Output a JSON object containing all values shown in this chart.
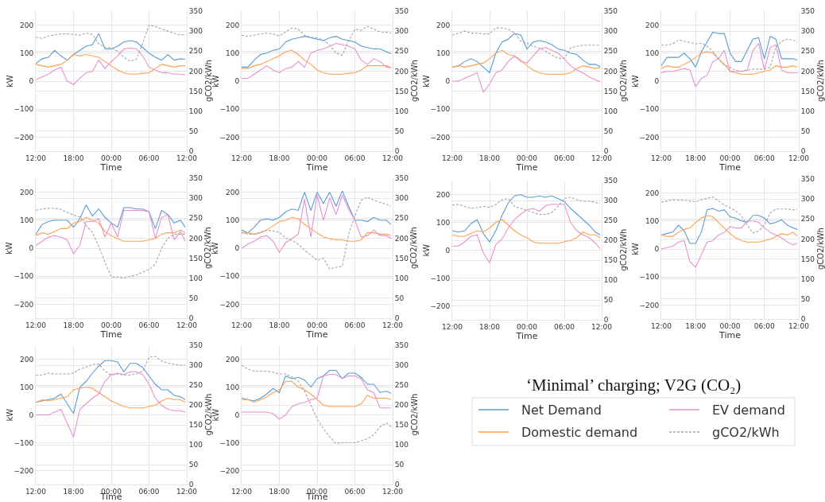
{
  "chart_data": [
    {
      "type": "line",
      "x": [
        "2000-01-01T12:00",
        "2000-01-01T13:00",
        "2000-01-01T14:00",
        "2000-01-01T15:00",
        "2000-01-01T16:00",
        "2000-01-01T17:00",
        "2000-01-01T18:00",
        "2000-01-01T19:00",
        "2000-01-01T20:00",
        "2000-01-01T21:00",
        "2000-01-01T22:00",
        "2000-01-01T23:00",
        "2000-01-02T00:00",
        "2000-01-02T01:00",
        "2000-01-02T02:00",
        "2000-01-02T03:00",
        "2000-01-02T04:00",
        "2000-01-02T05:00",
        "2000-01-02T06:00",
        "2000-01-02T07:00",
        "2000-01-02T08:00",
        "2000-01-02T09:00",
        "2000-01-02T10:00",
        "2000-01-02T11:00",
        "2000-01-02T11:45"
      ],
      "xlim": [
        "2000-01-01T12:00",
        "2000-01-02T12:00"
      ],
      "xticks": [
        {
          "value": "2000-01-01T12:00",
          "label": "12:00"
        },
        {
          "value": "2000-01-01T18:00",
          "label": "18:00"
        },
        {
          "value": "2000-01-02T00:00",
          "label": "00:00"
        },
        {
          "value": "2000-01-02T06:00",
          "label": "06:00"
        },
        {
          "value": "2000-01-02T12:00",
          "label": "12:00"
        }
      ],
      "ylim": [
        -250,
        250
      ],
      "yticks": [
        -200,
        -100,
        0,
        100,
        200
      ],
      "y2lim": [
        0,
        350
      ],
      "y2ticks": [
        0,
        50,
        100,
        150,
        200,
        250,
        300,
        350
      ],
      "xlabel": "Time",
      "ylabel": "kW",
      "y2label": "gCO2/kWh",
      "grid": true,
      "series": [
        {
          "color": "#5b9bd5",
          "values": [
            62,
            80,
            85,
            110,
            90,
            75,
            95,
            110,
            125,
            130,
            170,
            115,
            115,
            125,
            140,
            145,
            140,
            120,
            100,
            85,
            75,
            95,
            75,
            80,
            78
          ]
        },
        {
          "color": "#ffa04d",
          "values": [
            60,
            55,
            50,
            55,
            60,
            75,
            95,
            90,
            95,
            90,
            85,
            70,
            55,
            40,
            30,
            25,
            25,
            28,
            30,
            45,
            60,
            55,
            50,
            55,
            55
          ]
        },
        {
          "color": "#ea8fd0",
          "values": [
            5,
            15,
            25,
            40,
            50,
            0,
            -12,
            10,
            30,
            35,
            75,
            45,
            70,
            90,
            115,
            118,
            115,
            90,
            50,
            40,
            30,
            30,
            25,
            25,
            22
          ]
        },
        {
          "color": "#a6a6a6",
          "axis": "y2",
          "line_style": "dashed",
          "values": [
            285,
            282,
            288,
            290,
            293,
            293,
            292,
            290,
            295,
            292,
            268,
            260,
            258,
            250,
            235,
            225,
            230,
            270,
            315,
            312,
            305,
            300,
            295,
            290,
            292
          ]
        }
      ]
    },
    {
      "type": "line",
      "x": [
        "2000-01-01T12:00",
        "2000-01-01T13:00",
        "2000-01-01T14:00",
        "2000-01-01T15:00",
        "2000-01-01T16:00",
        "2000-01-01T17:00",
        "2000-01-01T18:00",
        "2000-01-01T19:00",
        "2000-01-01T20:00",
        "2000-01-01T21:00",
        "2000-01-01T22:00",
        "2000-01-01T23:00",
        "2000-01-02T00:00",
        "2000-01-02T01:00",
        "2000-01-02T02:00",
        "2000-01-02T03:00",
        "2000-01-02T04:00",
        "2000-01-02T05:00",
        "2000-01-02T06:00",
        "2000-01-02T07:00",
        "2000-01-02T08:00",
        "2000-01-02T09:00",
        "2000-01-02T10:00",
        "2000-01-02T11:00",
        "2000-01-02T11:45"
      ],
      "xlim": [
        "2000-01-01T12:00",
        "2000-01-02T12:00"
      ],
      "xticks": [
        {
          "value": "2000-01-01T12:00",
          "label": "12:00"
        },
        {
          "value": "2000-01-01T18:00",
          "label": "18:00"
        },
        {
          "value": "2000-01-02T00:00",
          "label": "00:00"
        },
        {
          "value": "2000-01-02T06:00",
          "label": "06:00"
        },
        {
          "value": "2000-01-02T12:00",
          "label": "12:00"
        }
      ],
      "ylim": [
        -250,
        250
      ],
      "yticks": [
        -200,
        -100,
        0,
        100,
        200
      ],
      "y2lim": [
        0,
        350
      ],
      "y2ticks": [
        0,
        50,
        100,
        150,
        200,
        250,
        300,
        350
      ],
      "xlabel": "Time",
      "ylabel": "kW",
      "y2label": "gCO2/kWh",
      "grid": true,
      "series": [
        {
          "color": "#5b9bd5",
          "values": [
            50,
            50,
            75,
            95,
            100,
            110,
            115,
            140,
            150,
            155,
            160,
            155,
            150,
            145,
            155,
            160,
            150,
            145,
            140,
            125,
            120,
            115,
            115,
            105,
            98
          ]
        },
        {
          "color": "#ffa04d",
          "values": [
            45,
            45,
            55,
            60,
            70,
            80,
            90,
            105,
            110,
            95,
            75,
            60,
            40,
            30,
            25,
            25,
            25,
            28,
            30,
            40,
            55,
            55,
            55,
            55,
            48
          ]
        },
        {
          "color": "#ea8fd0",
          "values": [
            10,
            10,
            25,
            40,
            55,
            40,
            30,
            45,
            50,
            70,
            50,
            100,
            110,
            115,
            125,
            135,
            130,
            125,
            115,
            75,
            60,
            80,
            70,
            50,
            48
          ]
        },
        {
          "color": "#a6a6a6",
          "axis": "y2",
          "line_style": "dashed",
          "values": [
            290,
            287,
            290,
            293,
            295,
            293,
            288,
            298,
            308,
            305,
            290,
            285,
            283,
            278,
            265,
            245,
            240,
            275,
            305,
            302,
            312,
            305,
            298,
            297,
            295
          ]
        }
      ]
    },
    {
      "type": "line",
      "x": [
        "2000-01-01T12:00",
        "2000-01-01T13:00",
        "2000-01-01T14:00",
        "2000-01-01T15:00",
        "2000-01-01T16:00",
        "2000-01-01T17:00",
        "2000-01-01T18:00",
        "2000-01-01T19:00",
        "2000-01-01T20:00",
        "2000-01-01T21:00",
        "2000-01-01T22:00",
        "2000-01-01T23:00",
        "2000-01-02T00:00",
        "2000-01-02T01:00",
        "2000-01-02T02:00",
        "2000-01-02T03:00",
        "2000-01-02T04:00",
        "2000-01-02T05:00",
        "2000-01-02T06:00",
        "2000-01-02T07:00",
        "2000-01-02T08:00",
        "2000-01-02T09:00",
        "2000-01-02T10:00",
        "2000-01-02T11:00",
        "2000-01-02T11:45"
      ],
      "xlim": [
        "2000-01-01T12:00",
        "2000-01-02T12:00"
      ],
      "xticks": [
        {
          "value": "2000-01-01T12:00",
          "label": "12:00"
        },
        {
          "value": "2000-01-01T18:00",
          "label": "18:00"
        },
        {
          "value": "2000-01-02T00:00",
          "label": "00:00"
        },
        {
          "value": "2000-01-02T06:00",
          "label": "06:00"
        },
        {
          "value": "2000-01-02T12:00",
          "label": "12:00"
        }
      ],
      "ylim": [
        -250,
        250
      ],
      "yticks": [
        -200,
        -100,
        0,
        100,
        200
      ],
      "y2lim": [
        0,
        350
      ],
      "y2ticks": [
        0,
        50,
        100,
        150,
        200,
        250,
        300,
        350
      ],
      "xlabel": "Time",
      "ylabel": "kW",
      "y2label": "gCO2/kWh",
      "grid": true,
      "series": [
        {
          "color": "#5b9bd5",
          "values": [
            50,
            55,
            70,
            80,
            70,
            50,
            30,
            100,
            140,
            150,
            170,
            165,
            115,
            140,
            145,
            140,
            130,
            115,
            110,
            100,
            95,
            75,
            60,
            60,
            52
          ]
        },
        {
          "color": "#ffa04d",
          "values": [
            50,
            55,
            50,
            55,
            60,
            65,
            80,
            100,
            110,
            95,
            90,
            75,
            55,
            40,
            30,
            25,
            25,
            25,
            25,
            30,
            45,
            55,
            50,
            45,
            48
          ]
        },
        {
          "color": "#ea8fd0",
          "values": [
            0,
            0,
            10,
            20,
            30,
            -40,
            -10,
            30,
            40,
            70,
            90,
            70,
            65,
            90,
            115,
            120,
            110,
            100,
            80,
            55,
            40,
            30,
            15,
            5,
            -2
          ]
        },
        {
          "color": "#a6a6a6",
          "axis": "y2",
          "line_style": "dashed",
          "values": [
            290,
            295,
            300,
            295,
            295,
            293,
            293,
            308,
            308,
            305,
            295,
            275,
            270,
            262,
            258,
            250,
            240,
            232,
            232,
            258,
            262,
            265,
            265,
            265,
            265
          ]
        }
      ]
    },
    {
      "type": "line",
      "x": [
        "2000-01-01T12:00",
        "2000-01-01T13:00",
        "2000-01-01T14:00",
        "2000-01-01T15:00",
        "2000-01-01T16:00",
        "2000-01-01T17:00",
        "2000-01-01T18:00",
        "2000-01-01T19:00",
        "2000-01-01T20:00",
        "2000-01-01T21:00",
        "2000-01-01T22:00",
        "2000-01-01T23:00",
        "2000-01-02T00:00",
        "2000-01-02T01:00",
        "2000-01-02T02:00",
        "2000-01-02T03:00",
        "2000-01-02T04:00",
        "2000-01-02T05:00",
        "2000-01-02T06:00",
        "2000-01-02T07:00",
        "2000-01-02T08:00",
        "2000-01-02T09:00",
        "2000-01-02T10:00",
        "2000-01-02T11:00",
        "2000-01-02T11:45"
      ],
      "xlim": [
        "2000-01-01T12:00",
        "2000-01-02T12:00"
      ],
      "xticks": [
        {
          "value": "2000-01-01T12:00",
          "label": "12:00"
        },
        {
          "value": "2000-01-01T18:00",
          "label": "18:00"
        },
        {
          "value": "2000-01-02T00:00",
          "label": "00:00"
        },
        {
          "value": "2000-01-02T06:00",
          "label": "06:00"
        },
        {
          "value": "2000-01-02T12:00",
          "label": "12:00"
        }
      ],
      "ylim": [
        -250,
        250
      ],
      "yticks": [
        -200,
        -100,
        0,
        100,
        200
      ],
      "y2lim": [
        0,
        350
      ],
      "y2ticks": [
        0,
        50,
        100,
        150,
        200,
        250,
        300,
        350
      ],
      "xlabel": "Time",
      "ylabel": "kW",
      "y2label": "gCO2/kWh",
      "grid": true,
      "series": [
        {
          "color": "#5b9bd5",
          "values": [
            55,
            85,
            85,
            85,
            100,
            80,
            50,
            105,
            140,
            175,
            170,
            170,
            100,
            70,
            70,
            110,
            150,
            155,
            80,
            160,
            150,
            80,
            80,
            80,
            75
          ]
        },
        {
          "color": "#ffa04d",
          "values": [
            45,
            55,
            50,
            50,
            60,
            70,
            85,
            100,
            105,
            100,
            80,
            60,
            35,
            30,
            25,
            25,
            25,
            30,
            35,
            40,
            55,
            50,
            50,
            55,
            50
          ]
        },
        {
          "color": "#ea8fd0",
          "values": [
            30,
            35,
            35,
            40,
            45,
            40,
            -20,
            10,
            20,
            70,
            80,
            110,
            35,
            35,
            35,
            40,
            110,
            135,
            40,
            120,
            130,
            40,
            30,
            30,
            30
          ]
        },
        {
          "color": "#a6a6a6",
          "axis": "y2",
          "line_style": "dashed",
          "values": [
            265,
            265,
            268,
            278,
            275,
            272,
            268,
            270,
            262,
            250,
            230,
            215,
            210,
            202,
            200,
            202,
            205,
            205,
            205,
            210,
            260,
            275,
            280,
            278,
            272
          ]
        }
      ]
    },
    {
      "type": "line",
      "x": [
        "2000-01-01T12:00",
        "2000-01-01T13:00",
        "2000-01-01T14:00",
        "2000-01-01T15:00",
        "2000-01-01T16:00",
        "2000-01-01T17:00",
        "2000-01-01T18:00",
        "2000-01-01T19:00",
        "2000-01-01T20:00",
        "2000-01-01T21:00",
        "2000-01-01T22:00",
        "2000-01-01T23:00",
        "2000-01-02T00:00",
        "2000-01-02T01:00",
        "2000-01-02T02:00",
        "2000-01-02T03:00",
        "2000-01-02T04:00",
        "2000-01-02T05:00",
        "2000-01-02T06:00",
        "2000-01-02T07:00",
        "2000-01-02T08:00",
        "2000-01-02T09:00",
        "2000-01-02T10:00",
        "2000-01-02T11:00",
        "2000-01-02T11:45"
      ],
      "xlim": [
        "2000-01-01T12:00",
        "2000-01-02T12:00"
      ],
      "xticks": [
        {
          "value": "2000-01-01T12:00",
          "label": "12:00"
        },
        {
          "value": "2000-01-01T18:00",
          "label": "18:00"
        },
        {
          "value": "2000-01-02T00:00",
          "label": "00:00"
        },
        {
          "value": "2000-01-02T06:00",
          "label": "06:00"
        },
        {
          "value": "2000-01-02T12:00",
          "label": "12:00"
        }
      ],
      "ylim": [
        -250,
        250
      ],
      "yticks": [
        -200,
        -100,
        0,
        100,
        200
      ],
      "y2lim": [
        0,
        350
      ],
      "y2ticks": [
        0,
        50,
        100,
        150,
        200,
        250,
        300,
        350
      ],
      "xlabel": "Time",
      "ylabel": "kW",
      "y2label": "gCO2/kWh",
      "grid": true,
      "series": [
        {
          "color": "#5b9bd5",
          "values": [
            50,
            85,
            95,
            100,
            100,
            100,
            75,
            105,
            155,
            115,
            140,
            110,
            90,
            75,
            145,
            145,
            140,
            140,
            130,
            70,
            135,
            120,
            90,
            100,
            75
          ]
        },
        {
          "color": "#ffa04d",
          "values": [
            45,
            55,
            50,
            60,
            70,
            70,
            90,
            95,
            110,
            100,
            90,
            60,
            45,
            35,
            25,
            25,
            25,
            25,
            30,
            35,
            50,
            55,
            55,
            65,
            55
          ]
        },
        {
          "color": "#ea8fd0",
          "values": [
            10,
            25,
            40,
            45,
            40,
            30,
            -20,
            10,
            95,
            95,
            105,
            40,
            90,
            40,
            135,
            135,
            135,
            135,
            130,
            35,
            110,
            120,
            30,
            60,
            25
          ]
        },
        {
          "color": "#a6a6a6",
          "axis": "y2",
          "line_style": "dashed",
          "values": [
            270,
            273,
            275,
            275,
            272,
            265,
            258,
            253,
            232,
            215,
            180,
            140,
            103,
            103,
            100,
            105,
            108,
            115,
            122,
            135,
            175,
            200,
            210,
            210,
            210
          ]
        }
      ]
    },
    {
      "type": "line",
      "x": [
        "2000-01-01T12:00",
        "2000-01-01T13:00",
        "2000-01-01T14:00",
        "2000-01-01T15:00",
        "2000-01-01T16:00",
        "2000-01-01T17:00",
        "2000-01-01T18:00",
        "2000-01-01T19:00",
        "2000-01-01T20:00",
        "2000-01-01T21:00",
        "2000-01-01T22:00",
        "2000-01-01T23:00",
        "2000-01-02T00:00",
        "2000-01-02T01:00",
        "2000-01-02T02:00",
        "2000-01-02T03:00",
        "2000-01-02T04:00",
        "2000-01-02T05:00",
        "2000-01-02T06:00",
        "2000-01-02T07:00",
        "2000-01-02T08:00",
        "2000-01-02T09:00",
        "2000-01-02T10:00",
        "2000-01-02T11:00",
        "2000-01-02T11:45"
      ],
      "xlim": [
        "2000-01-01T12:00",
        "2000-01-02T12:00"
      ],
      "xticks": [
        {
          "value": "2000-01-01T12:00",
          "label": "12:00"
        },
        {
          "value": "2000-01-01T18:00",
          "label": "18:00"
        },
        {
          "value": "2000-01-02T00:00",
          "label": "00:00"
        },
        {
          "value": "2000-01-02T06:00",
          "label": "06:00"
        },
        {
          "value": "2000-01-02T12:00",
          "label": "12:00"
        }
      ],
      "ylim": [
        -250,
        250
      ],
      "yticks": [
        -200,
        -100,
        0,
        100,
        200
      ],
      "y2lim": [
        0,
        350
      ],
      "y2ticks": [
        0,
        50,
        100,
        150,
        200,
        250,
        300,
        350
      ],
      "xlabel": "Time",
      "ylabel": "kW",
      "y2label": "gCO2/kWh",
      "grid": true,
      "series": [
        {
          "color": "#5b9bd5",
          "values": [
            65,
            55,
            75,
            100,
            105,
            100,
            110,
            130,
            140,
            135,
            200,
            135,
            200,
            160,
            200,
            150,
            205,
            150,
            100,
            100,
            95,
            110,
            100,
            100,
            85
          ]
        },
        {
          "color": "#ffa04d",
          "values": [
            55,
            55,
            50,
            55,
            65,
            80,
            95,
            100,
            110,
            105,
            85,
            70,
            55,
            40,
            35,
            30,
            30,
            25,
            25,
            30,
            55,
            55,
            50,
            50,
            45
          ]
        },
        {
          "color": "#ea8fd0",
          "values": [
            0,
            15,
            25,
            40,
            45,
            25,
            -15,
            20,
            35,
            50,
            175,
            40,
            190,
            100,
            180,
            120,
            190,
            140,
            100,
            40,
            45,
            65,
            45,
            45,
            35
          ]
        },
        {
          "color": "#a6a6a6",
          "axis": "y2",
          "line_style": "dashed",
          "values": [
            215,
            210,
            210,
            215,
            220,
            218,
            215,
            200,
            195,
            185,
            170,
            158,
            145,
            150,
            123,
            127,
            130,
            210,
            255,
            295,
            303,
            295,
            290,
            285,
            280
          ]
        }
      ]
    },
    {
      "type": "line",
      "x": [
        "2000-01-01T12:00",
        "2000-01-01T13:00",
        "2000-01-01T14:00",
        "2000-01-01T15:00",
        "2000-01-01T16:00",
        "2000-01-01T17:00",
        "2000-01-01T18:00",
        "2000-01-01T19:00",
        "2000-01-01T20:00",
        "2000-01-01T21:00",
        "2000-01-01T22:00",
        "2000-01-01T23:00",
        "2000-01-02T00:00",
        "2000-01-02T01:00",
        "2000-01-02T02:00",
        "2000-01-02T03:00",
        "2000-01-02T04:00",
        "2000-01-02T05:00",
        "2000-01-02T06:00",
        "2000-01-02T07:00",
        "2000-01-02T08:00",
        "2000-01-02T09:00",
        "2000-01-02T10:00",
        "2000-01-02T11:00",
        "2000-01-02T11:45"
      ],
      "xlim": [
        "2000-01-01T12:00",
        "2000-01-02T12:00"
      ],
      "xticks": [
        {
          "value": "2000-01-01T12:00",
          "label": "12:00"
        },
        {
          "value": "2000-01-01T18:00",
          "label": "18:00"
        },
        {
          "value": "2000-01-02T00:00",
          "label": "00:00"
        },
        {
          "value": "2000-01-02T06:00",
          "label": "06:00"
        },
        {
          "value": "2000-01-02T12:00",
          "label": "12:00"
        }
      ],
      "ylim": [
        -250,
        250
      ],
      "yticks": [
        -200,
        -100,
        0,
        100,
        200
      ],
      "y2lim": [
        0,
        350
      ],
      "y2ticks": [
        0,
        50,
        100,
        150,
        200,
        250,
        300,
        350
      ],
      "xlabel": "Time",
      "ylabel": "kW",
      "y2label": "gCO2/kWh",
      "grid": true,
      "series": [
        {
          "color": "#5b9bd5",
          "values": [
            70,
            65,
            70,
            95,
            110,
            60,
            30,
            70,
            125,
            170,
            195,
            200,
            190,
            190,
            195,
            190,
            195,
            185,
            175,
            150,
            130,
            110,
            90,
            65,
            55
          ]
        },
        {
          "color": "#ffa04d",
          "values": [
            55,
            50,
            50,
            60,
            70,
            65,
            80,
            100,
            110,
            90,
            70,
            55,
            45,
            30,
            25,
            25,
            25,
            25,
            30,
            35,
            45,
            65,
            55,
            55,
            45
          ]
        },
        {
          "color": "#ea8fd0",
          "values": [
            15,
            15,
            30,
            50,
            55,
            -10,
            -45,
            20,
            40,
            80,
            110,
            130,
            145,
            150,
            140,
            160,
            165,
            165,
            165,
            100,
            70,
            55,
            45,
            25,
            5
          ]
        },
        {
          "color": "#a6a6a6",
          "axis": "y2",
          "line_style": "dashed",
          "values": [
            288,
            290,
            285,
            280,
            282,
            285,
            283,
            290,
            302,
            305,
            285,
            280,
            275,
            270,
            265,
            265,
            270,
            285,
            305,
            308,
            302,
            298,
            298,
            295,
            292
          ]
        }
      ]
    },
    {
      "type": "line",
      "x": [
        "2000-01-01T12:00",
        "2000-01-01T13:00",
        "2000-01-01T14:00",
        "2000-01-01T15:00",
        "2000-01-01T16:00",
        "2000-01-01T17:00",
        "2000-01-01T18:00",
        "2000-01-01T19:00",
        "2000-01-01T20:00",
        "2000-01-01T21:00",
        "2000-01-01T22:00",
        "2000-01-01T23:00",
        "2000-01-02T00:00",
        "2000-01-02T01:00",
        "2000-01-02T02:00",
        "2000-01-02T03:00",
        "2000-01-02T04:00",
        "2000-01-02T05:00",
        "2000-01-02T06:00",
        "2000-01-02T07:00",
        "2000-01-02T08:00",
        "2000-01-02T09:00",
        "2000-01-02T10:00",
        "2000-01-02T11:00",
        "2000-01-02T11:45"
      ],
      "xlim": [
        "2000-01-01T12:00",
        "2000-01-02T12:00"
      ],
      "xticks": [
        {
          "value": "2000-01-01T12:00",
          "label": "12:00"
        },
        {
          "value": "2000-01-01T18:00",
          "label": "18:00"
        },
        {
          "value": "2000-01-02T00:00",
          "label": "00:00"
        },
        {
          "value": "2000-01-02T06:00",
          "label": "06:00"
        },
        {
          "value": "2000-01-02T12:00",
          "label": "12:00"
        }
      ],
      "ylim": [
        -250,
        250
      ],
      "yticks": [
        -200,
        -100,
        0,
        100,
        200
      ],
      "y2lim": [
        0,
        350
      ],
      "y2ticks": [
        0,
        50,
        100,
        150,
        200,
        250,
        300,
        350
      ],
      "xlabel": "Time",
      "ylabel": "kW",
      "y2label": "gCO2/kWh",
      "grid": true,
      "series": [
        {
          "color": "#5b9bd5",
          "values": [
            50,
            55,
            60,
            85,
            65,
            20,
            20,
            60,
            140,
            145,
            135,
            140,
            115,
            110,
            100,
            95,
            120,
            120,
            110,
            90,
            95,
            105,
            85,
            75,
            70
          ]
        },
        {
          "color": "#ffa04d",
          "values": [
            50,
            45,
            45,
            60,
            70,
            75,
            95,
            110,
            120,
            115,
            95,
            75,
            55,
            40,
            30,
            25,
            25,
            25,
            30,
            35,
            45,
            55,
            50,
            60,
            45
          ]
        },
        {
          "color": "#ea8fd0",
          "values": [
            0,
            5,
            10,
            25,
            30,
            -45,
            -65,
            -20,
            25,
            30,
            50,
            60,
            80,
            75,
            75,
            100,
            100,
            95,
            75,
            60,
            50,
            40,
            25,
            15,
            20
          ]
        },
        {
          "color": "#a6a6a6",
          "axis": "y2",
          "line_style": "dashed",
          "values": [
            292,
            295,
            298,
            297,
            297,
            295,
            293,
            298,
            302,
            305,
            295,
            285,
            278,
            270,
            258,
            235,
            215,
            220,
            235,
            265,
            275,
            275,
            275,
            273,
            273
          ]
        }
      ]
    },
    {
      "type": "line",
      "x": [
        "2000-01-01T12:00",
        "2000-01-01T13:00",
        "2000-01-01T14:00",
        "2000-01-01T15:00",
        "2000-01-01T16:00",
        "2000-01-01T17:00",
        "2000-01-01T18:00",
        "2000-01-01T19:00",
        "2000-01-01T20:00",
        "2000-01-01T21:00",
        "2000-01-01T22:00",
        "2000-01-01T23:00",
        "2000-01-02T00:00",
        "2000-01-02T01:00",
        "2000-01-02T02:00",
        "2000-01-02T03:00",
        "2000-01-02T04:00",
        "2000-01-02T05:00",
        "2000-01-02T06:00",
        "2000-01-02T07:00",
        "2000-01-02T08:00",
        "2000-01-02T09:00",
        "2000-01-02T10:00",
        "2000-01-02T11:00",
        "2000-01-02T11:45"
      ],
      "xlim": [
        "2000-01-01T12:00",
        "2000-01-02T12:00"
      ],
      "xticks": [
        {
          "value": "2000-01-01T12:00",
          "label": "12:00"
        },
        {
          "value": "2000-01-01T18:00",
          "label": "18:00"
        },
        {
          "value": "2000-01-02T00:00",
          "label": "00:00"
        },
        {
          "value": "2000-01-02T06:00",
          "label": "06:00"
        },
        {
          "value": "2000-01-02T12:00",
          "label": "12:00"
        }
      ],
      "ylim": [
        -250,
        250
      ],
      "yticks": [
        -200,
        -100,
        0,
        100,
        200
      ],
      "y2lim": [
        0,
        350
      ],
      "y2ticks": [
        0,
        50,
        100,
        150,
        200,
        250,
        300,
        350
      ],
      "xlabel": "Time",
      "ylabel": "kW",
      "y2label": "gCO2/kWh",
      "grid": true,
      "series": [
        {
          "color": "#5b9bd5",
          "values": [
            45,
            50,
            55,
            60,
            75,
            40,
            5,
            100,
            120,
            150,
            175,
            195,
            195,
            190,
            155,
            185,
            185,
            170,
            140,
            110,
            90,
            90,
            70,
            65,
            55
          ]
        },
        {
          "color": "#ffa04d",
          "values": [
            45,
            55,
            50,
            55,
            60,
            65,
            90,
            95,
            100,
            95,
            80,
            65,
            50,
            40,
            30,
            25,
            25,
            25,
            30,
            35,
            50,
            60,
            55,
            55,
            45
          ]
        },
        {
          "color": "#ea8fd0",
          "values": [
            0,
            0,
            0,
            10,
            20,
            -30,
            -80,
            20,
            40,
            60,
            75,
            120,
            145,
            150,
            145,
            155,
            155,
            145,
            110,
            60,
            35,
            20,
            15,
            15,
            10
          ]
        },
        {
          "color": "#a6a6a6",
          "axis": "y2",
          "line_style": "dashed",
          "values": [
            275,
            275,
            280,
            278,
            278,
            278,
            280,
            290,
            295,
            302,
            303,
            285,
            275,
            278,
            275,
            275,
            278,
            285,
            320,
            322,
            310,
            305,
            302,
            300,
            300
          ]
        }
      ]
    },
    {
      "type": "line",
      "x": [
        "2000-01-01T12:00",
        "2000-01-01T13:00",
        "2000-01-01T14:00",
        "2000-01-01T15:00",
        "2000-01-01T16:00",
        "2000-01-01T17:00",
        "2000-01-01T18:00",
        "2000-01-01T19:00",
        "2000-01-01T20:00",
        "2000-01-01T21:00",
        "2000-01-01T22:00",
        "2000-01-01T23:00",
        "2000-01-02T00:00",
        "2000-01-02T01:00",
        "2000-01-02T02:00",
        "2000-01-02T03:00",
        "2000-01-02T04:00",
        "2000-01-02T05:00",
        "2000-01-02T06:00",
        "2000-01-02T07:00",
        "2000-01-02T08:00",
        "2000-01-02T09:00",
        "2000-01-02T10:00",
        "2000-01-02T11:00",
        "2000-01-02T11:45"
      ],
      "xlim": [
        "2000-01-01T12:00",
        "2000-01-02T12:00"
      ],
      "xticks": [
        {
          "value": "2000-01-01T12:00",
          "label": "12:00"
        },
        {
          "value": "2000-01-01T18:00",
          "label": "18:00"
        },
        {
          "value": "2000-01-02T00:00",
          "label": "00:00"
        },
        {
          "value": "2000-01-02T06:00",
          "label": "06:00"
        },
        {
          "value": "2000-01-02T12:00",
          "label": "12:00"
        }
      ],
      "ylim": [
        -250,
        250
      ],
      "yticks": [
        -200,
        -100,
        0,
        100,
        200
      ],
      "y2lim": [
        0,
        350
      ],
      "y2ticks": [
        0,
        50,
        100,
        150,
        200,
        250,
        300,
        350
      ],
      "xlabel": "Time",
      "ylabel": "kW",
      "y2label": "gCO2/kWh",
      "grid": true,
      "legend": "right",
      "legend_title": "‘Minimal’ charging; V2G (CO₂)",
      "series": [
        {
          "name": "Net Demand",
          "color": "#5b9bd5",
          "values": [
            60,
            55,
            50,
            60,
            75,
            95,
            80,
            140,
            130,
            135,
            125,
            100,
            130,
            140,
            160,
            160,
            130,
            150,
            150,
            135,
            110,
            110,
            80,
            85,
            78
          ]
        },
        {
          "name": "Domestic demand",
          "color": "#ffa04d",
          "values": [
            55,
            55,
            45,
            55,
            65,
            80,
            90,
            120,
            120,
            100,
            90,
            75,
            55,
            35,
            30,
            30,
            30,
            30,
            30,
            40,
            70,
            60,
            60,
            60,
            55
          ]
        },
        {
          "name": "EV demand",
          "color": "#ea8fd0",
          "values": [
            10,
            10,
            10,
            10,
            10,
            5,
            -15,
            0,
            30,
            40,
            45,
            55,
            60,
            140,
            145,
            145,
            130,
            140,
            140,
            130,
            90,
            80,
            25,
            25,
            25
          ]
        },
        {
          "name": "gCO2/kWh",
          "color": "#a6a6a6",
          "axis": "y2",
          "line_style": "dashed",
          "values": [
            300,
            290,
            285,
            285,
            285,
            282,
            278,
            278,
            270,
            260,
            235,
            200,
            165,
            140,
            120,
            103,
            105,
            105,
            105,
            110,
            115,
            125,
            145,
            155,
            145
          ]
        }
      ]
    }
  ]
}
